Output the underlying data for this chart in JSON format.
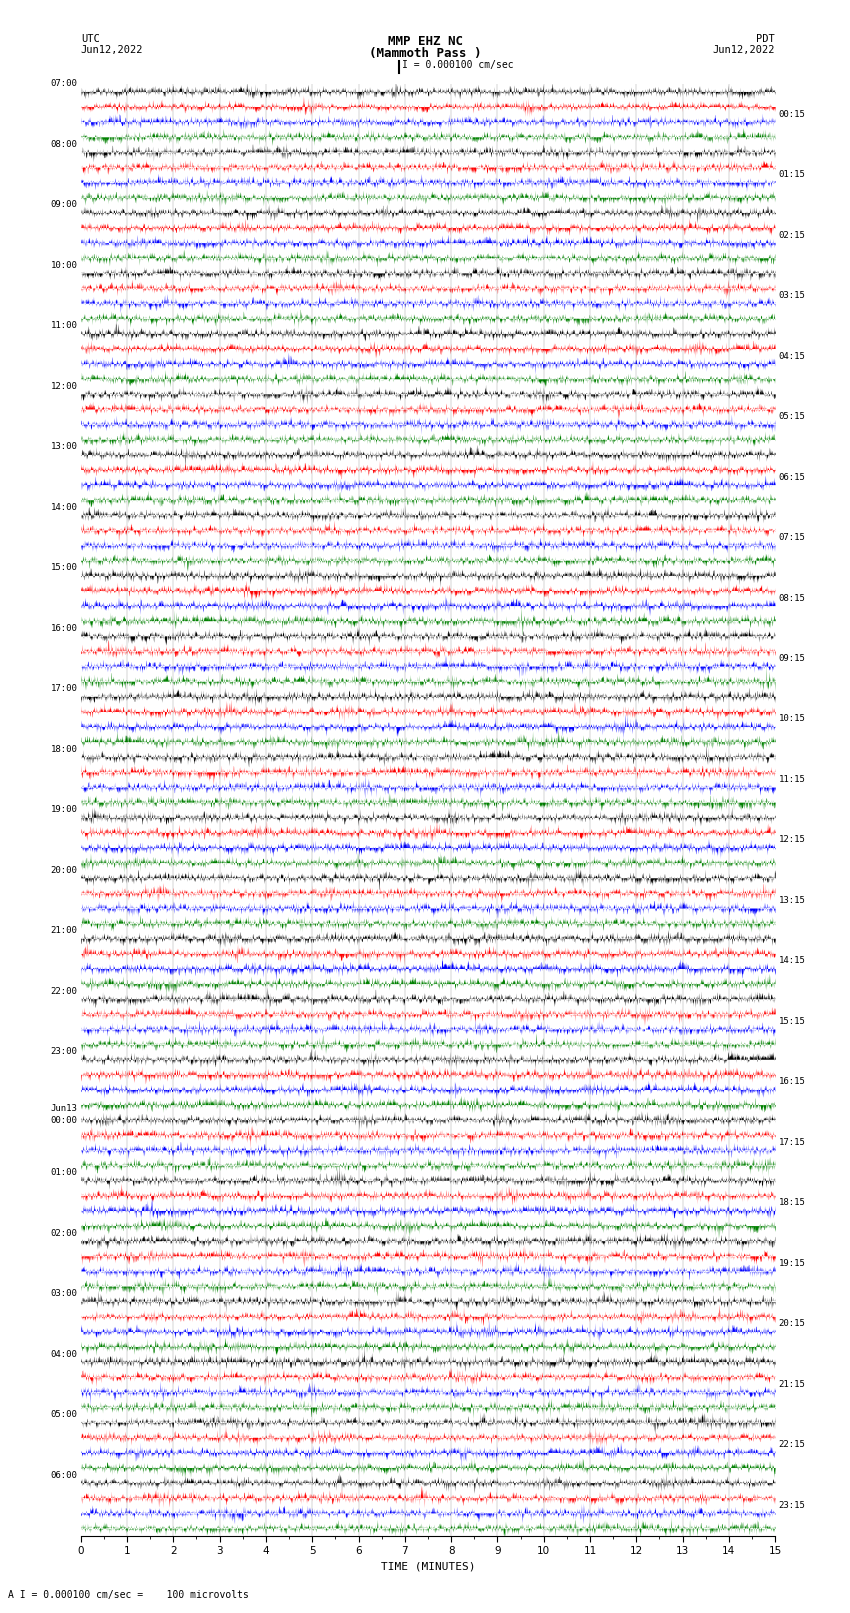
{
  "title_line1": "MMP EHZ NC",
  "title_line2": "(Mammoth Pass )",
  "scale_text": "I = 0.000100 cm/sec",
  "footer_text": "A I = 0.000100 cm/sec =    100 microvolts",
  "utc_label": "UTC",
  "utc_date": "Jun12,2022",
  "pdt_label": "PDT",
  "pdt_date": "Jun12,2022",
  "xlabel": "TIME (MINUTES)",
  "left_times": [
    "07:00",
    "08:00",
    "09:00",
    "10:00",
    "11:00",
    "12:00",
    "13:00",
    "14:00",
    "15:00",
    "16:00",
    "17:00",
    "18:00",
    "19:00",
    "20:00",
    "21:00",
    "22:00",
    "23:00",
    "Jun13\n00:00",
    "01:00",
    "02:00",
    "03:00",
    "04:00",
    "05:00",
    "06:00"
  ],
  "right_times": [
    "00:15",
    "01:15",
    "02:15",
    "03:15",
    "04:15",
    "05:15",
    "06:15",
    "07:15",
    "08:15",
    "09:15",
    "10:15",
    "11:15",
    "12:15",
    "13:15",
    "14:15",
    "15:15",
    "16:15",
    "17:15",
    "18:15",
    "19:15",
    "20:15",
    "21:15",
    "22:15",
    "23:15"
  ],
  "n_rows": 24,
  "traces_per_row": 4,
  "minutes_per_row": 15,
  "colors": [
    "black",
    "red",
    "blue",
    "green"
  ],
  "fig_width": 8.5,
  "fig_height": 16.13,
  "bg_color": "white",
  "noise_seed": 42,
  "amplitude_scale": 0.32,
  "samples_per_minute": 200
}
